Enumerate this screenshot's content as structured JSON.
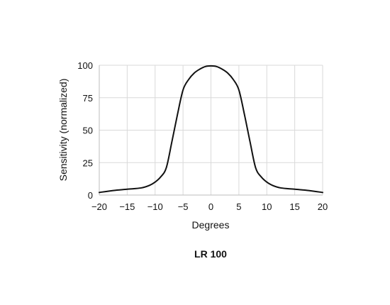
{
  "chart_data": {
    "type": "line",
    "title": "",
    "caption": "LR 100",
    "xlabel": "Degrees",
    "ylabel": "Sensitivity (normalized)",
    "xlim": [
      -20,
      20
    ],
    "ylim": [
      0,
      100
    ],
    "xticks": [
      -20,
      -15,
      -10,
      -5,
      0,
      5,
      10,
      15,
      20
    ],
    "xtick_labels": [
      "−20",
      "−15",
      "−10",
      "−5",
      "0",
      "5",
      "10",
      "15",
      "20"
    ],
    "yticks": [
      0,
      25,
      50,
      75,
      100
    ],
    "ytick_labels": [
      "0",
      "25",
      "50",
      "75",
      "100"
    ],
    "grid": true,
    "legend": "none",
    "colors": {
      "line": "#111111",
      "grid": "#d9d9d9"
    },
    "series": [
      {
        "x": [
          -20,
          -17.5,
          -15,
          -12.5,
          -11,
          -10,
          -9,
          -8,
          -7,
          -6,
          -5,
          -4,
          -3,
          -2,
          -1,
          0,
          1,
          2,
          3,
          4,
          5,
          6,
          7,
          8,
          9,
          10,
          11,
          12.5,
          15,
          17.5,
          20
        ],
        "y": [
          2,
          3.5,
          4.5,
          5.5,
          7.5,
          10,
          14,
          21,
          41,
          62,
          81,
          89,
          94,
          97,
          99,
          99.5,
          99,
          97,
          94,
          89,
          81,
          62,
          41,
          21,
          14,
          10,
          7.5,
          5.5,
          4.5,
          3.5,
          2
        ]
      }
    ]
  }
}
